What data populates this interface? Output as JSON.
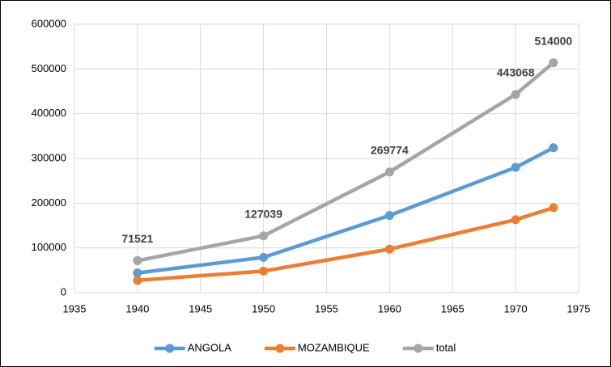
{
  "chart_data": {
    "type": "line",
    "x": [
      1940,
      1950,
      1960,
      1970,
      1973
    ],
    "series": [
      {
        "name": "ANGOLA",
        "color": "#5b9bd5",
        "values": [
          44083,
          78826,
          172529,
          280000,
          324000
        ]
      },
      {
        "name": "MOZAMBIQUE",
        "color": "#ed7d31",
        "values": [
          27438,
          48213,
          97245,
          163068,
          190000
        ]
      },
      {
        "name": "total",
        "color": "#a5a5a5",
        "values": [
          71521,
          127039,
          269774,
          443068,
          514000
        ],
        "data_labels": true
      }
    ],
    "xlim": [
      1935,
      1975
    ],
    "xticks": [
      1935,
      1940,
      1945,
      1950,
      1955,
      1960,
      1965,
      1970,
      1975
    ],
    "ylim": [
      0,
      600000
    ],
    "yticks": [
      0,
      100000,
      200000,
      300000,
      400000,
      500000,
      600000
    ],
    "grid": true,
    "legend": "bottom"
  }
}
